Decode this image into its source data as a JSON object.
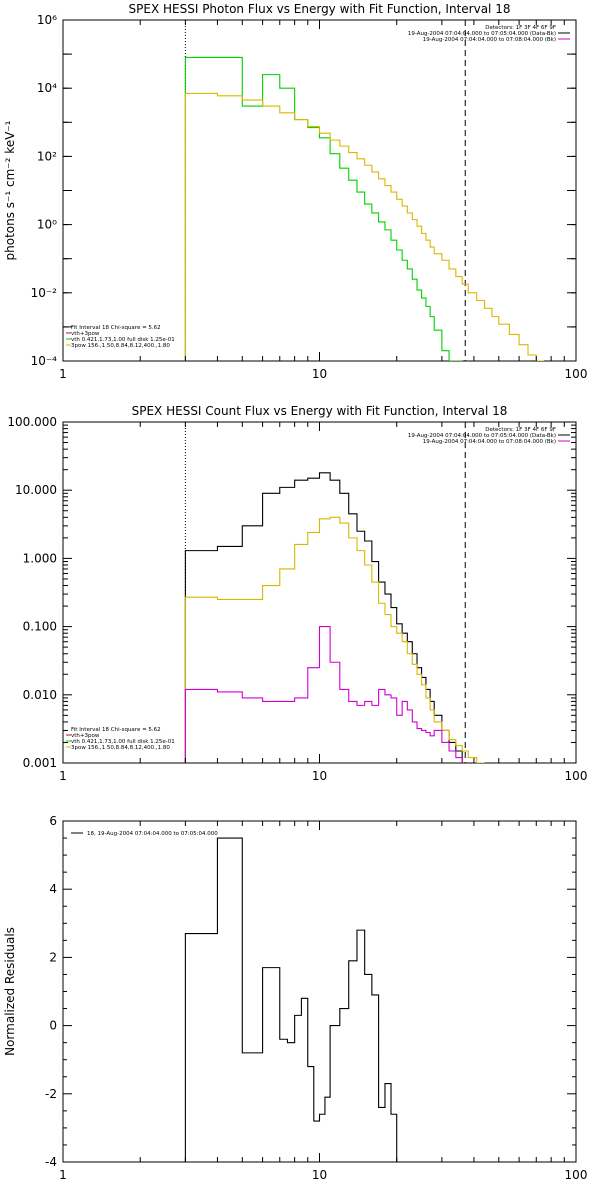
{
  "colors": {
    "black": "#000000",
    "red": "#e00000",
    "green": "#00d000",
    "yellow": "#d8b800",
    "magenta": "#d000d0"
  },
  "chart_data": [
    {
      "type": "line",
      "title": "SPEX HESSI Photon Flux vs Energy with Fit Function, Interval 18",
      "xlabel": "",
      "ylabel": "photons s⁻¹ cm⁻² keV⁻¹",
      "xscale": "log",
      "yscale": "log",
      "xlim": [
        1,
        100
      ],
      "ylim": [
        0.0001,
        1000000
      ],
      "xticks": [
        1,
        10,
        100
      ],
      "xtick_labels": [
        "1",
        "10",
        "100"
      ],
      "yticks": [
        0.0001,
        0.01,
        1,
        100,
        10000,
        1000000
      ],
      "ytick_labels": [
        "10⁻⁴",
        "10⁻²",
        "10⁰",
        "10²",
        "10⁴",
        "10⁶"
      ],
      "vlines": [
        {
          "x": 3,
          "style": "dotted"
        },
        {
          "x": 37,
          "style": "dashed"
        }
      ],
      "info_text": [
        "Detectors: 1F 3F 4F 6F 9F",
        "19-Aug-2004 07:04:04.000 to 07:05:04.000 (Data-Bk)",
        "19-Aug-2004 07:04:04.000 to 07:08:04.000 (Bk)"
      ],
      "info_colors": [
        "black",
        "magenta"
      ],
      "legend_text": [
        "Fit Interval 18   Chi-square = 5.62",
        "vth+3pow",
        "vth 0.421,1.73,1.00  full disk 1.25e-01",
        "3pow 156.,1.50,8.84,8.12,400.,1.80"
      ],
      "legend_colors": [
        "red",
        "green",
        "yellow"
      ],
      "series": [
        {
          "color": "green",
          "edges": [
            3,
            4,
            5,
            6,
            7,
            8,
            9,
            10,
            11,
            12,
            13,
            14,
            15,
            16,
            17,
            18,
            19,
            20,
            21,
            22,
            23,
            24,
            25,
            26,
            27,
            28,
            30,
            32,
            34,
            36
          ],
          "values": [
            80000,
            80000,
            3000,
            25000,
            10000,
            1200,
            700,
            350,
            120,
            45,
            20,
            9,
            4,
            2.2,
            1.2,
            0.7,
            0.35,
            0.18,
            0.09,
            0.05,
            0.025,
            0.012,
            0.007,
            0.004,
            0.002,
            0.0008,
            0.0002,
            0.0001,
            5e-05
          ]
        },
        {
          "color": "yellow",
          "edges": [
            3,
            4,
            5,
            6,
            7,
            8,
            9,
            10,
            11,
            12,
            13,
            14,
            15,
            16,
            17,
            18,
            19,
            20,
            21,
            22,
            23,
            24,
            25,
            26,
            27,
            28,
            30,
            32,
            34,
            36,
            38,
            41,
            44,
            47,
            50,
            55,
            60,
            65,
            70,
            75
          ],
          "values": [
            7000,
            6000,
            4500,
            3000,
            1900,
            1200,
            750,
            480,
            300,
            200,
            130,
            85,
            55,
            35,
            22,
            14,
            9,
            5.5,
            3.5,
            2.2,
            1.4,
            0.9,
            0.55,
            0.35,
            0.22,
            0.14,
            0.09,
            0.05,
            0.03,
            0.018,
            0.01,
            0.006,
            0.0035,
            0.002,
            0.0012,
            0.0006,
            0.0003,
            0.00015,
            8e-05
          ]
        }
      ]
    },
    {
      "type": "line",
      "title": "SPEX HESSI Count Flux vs Energy with Fit Function, Interval 18",
      "xlabel": "",
      "ylabel": "",
      "xscale": "log",
      "yscale": "log",
      "xlim": [
        1,
        100
      ],
      "ylim": [
        0.001,
        100
      ],
      "xticks": [
        1,
        10,
        100
      ],
      "xtick_labels": [
        "1",
        "10",
        "100"
      ],
      "yticks": [
        0.001,
        0.01,
        0.1,
        1,
        10,
        100
      ],
      "ytick_labels": [
        "0.001",
        "0.010",
        "0.100",
        "1.000",
        "10.000",
        "100.000"
      ],
      "vlines": [
        {
          "x": 3,
          "style": "dotted"
        },
        {
          "x": 37,
          "style": "dashed"
        }
      ],
      "info_text": [
        "Detectors: 1F 3F 4F 6F 9F",
        "19-Aug-2004 07:04:04.000 to 07:05:04.000 (Data-Bk)",
        "19-Aug-2004 07:04:04.000 to 07:08:04.000 (Bk)"
      ],
      "info_colors": [
        "black",
        "magenta"
      ],
      "legend_text": [
        "Fit Interval 18   Chi-square = 5.62",
        "vth+3pow",
        "vth 0.421,1.73,1.00  full disk 1.25e-01",
        "3pow 156.,1.50,8.84,8.12,400.,1.80"
      ],
      "legend_colors": [
        "red",
        "green",
        "yellow"
      ],
      "series": [
        {
          "color": "black",
          "edges": [
            3,
            4,
            5,
            6,
            7,
            8,
            9,
            10,
            11,
            12,
            13,
            14,
            15,
            16,
            17,
            18,
            19,
            20,
            21,
            22,
            23,
            24,
            25,
            26,
            27,
            28,
            30,
            32,
            34,
            36,
            38,
            41
          ],
          "values": [
            1.3,
            1.5,
            3.0,
            9.0,
            11,
            14,
            15,
            18,
            14,
            9,
            4.5,
            2.5,
            1.8,
            0.9,
            0.45,
            0.3,
            0.19,
            0.11,
            0.08,
            0.06,
            0.04,
            0.025,
            0.018,
            0.012,
            0.008,
            0.005,
            0.003,
            0.002,
            0.0015,
            0.001,
            0.0008
          ]
        },
        {
          "color": "yellow",
          "edges": [
            3,
            4,
            5,
            6,
            7,
            8,
            9,
            10,
            11,
            12,
            13,
            14,
            15,
            16,
            17,
            18,
            19,
            20,
            21,
            22,
            23,
            24,
            25,
            26,
            27,
            28,
            30,
            32,
            34,
            36,
            38,
            41,
            44
          ],
          "values": [
            0.27,
            0.25,
            0.25,
            0.4,
            0.7,
            1.6,
            2.4,
            3.8,
            4.0,
            3.3,
            2.0,
            1.3,
            0.8,
            0.45,
            0.22,
            0.15,
            0.1,
            0.08,
            0.06,
            0.04,
            0.028,
            0.02,
            0.014,
            0.009,
            0.006,
            0.004,
            0.003,
            0.0022,
            0.0018,
            0.0015,
            0.0012,
            0.001
          ]
        },
        {
          "color": "magenta",
          "edges": [
            3,
            4,
            5,
            6,
            7,
            8,
            9,
            10,
            11,
            12,
            13,
            14,
            15,
            16,
            17,
            18,
            19,
            20,
            21,
            22,
            23,
            24,
            25,
            26,
            27,
            28,
            30,
            32,
            34,
            36
          ],
          "values": [
            0.012,
            0.011,
            0.009,
            0.008,
            0.008,
            0.009,
            0.025,
            0.1,
            0.03,
            0.012,
            0.008,
            0.007,
            0.008,
            0.007,
            0.012,
            0.01,
            0.009,
            0.005,
            0.008,
            0.006,
            0.004,
            0.0032,
            0.003,
            0.0028,
            0.0025,
            0.003,
            0.002,
            0.0015,
            0.0012
          ]
        }
      ]
    },
    {
      "type": "line",
      "title": "",
      "xlabel": "",
      "ylabel": "Normalized Residuals",
      "xscale": "log",
      "yscale": "linear",
      "xlim": [
        1,
        100
      ],
      "ylim": [
        -4,
        6
      ],
      "xticks": [
        1,
        10,
        100
      ],
      "xtick_labels": [
        "1",
        "10",
        "100"
      ],
      "yticks": [
        -4,
        -2,
        0,
        2,
        4,
        6
      ],
      "ytick_labels": [
        "-4",
        "-2",
        "0",
        "2",
        "4",
        "6"
      ],
      "legend_text": [
        "18, 19-Aug-2004 07:04:04.000 to 07:05:04.000"
      ],
      "series": [
        {
          "color": "black",
          "edges": [
            3,
            3.5,
            4,
            4.5,
            5,
            5.5,
            6,
            6.5,
            7,
            7.5,
            8,
            8.5,
            9,
            9.5,
            10,
            10.5,
            11,
            12,
            13,
            14,
            15,
            16,
            17,
            18,
            19,
            20,
            22,
            24,
            26,
            28,
            30,
            33,
            36,
            39
          ],
          "values": [
            2.7,
            2.7,
            5.5,
            5.5,
            -0.8,
            -0.8,
            1.7,
            1.7,
            -0.4,
            -0.5,
            0.3,
            0.8,
            -1.2,
            -2.8,
            -2.6,
            -2.1,
            0.0,
            0.5,
            1.9,
            2.8,
            1.5,
            0.9,
            -2.4,
            -1.7,
            -2.6,
            -4.0,
            -4.0,
            -4.0,
            -4.0,
            -4.0,
            -4.0,
            -4.0,
            -4.0
          ]
        }
      ]
    }
  ]
}
